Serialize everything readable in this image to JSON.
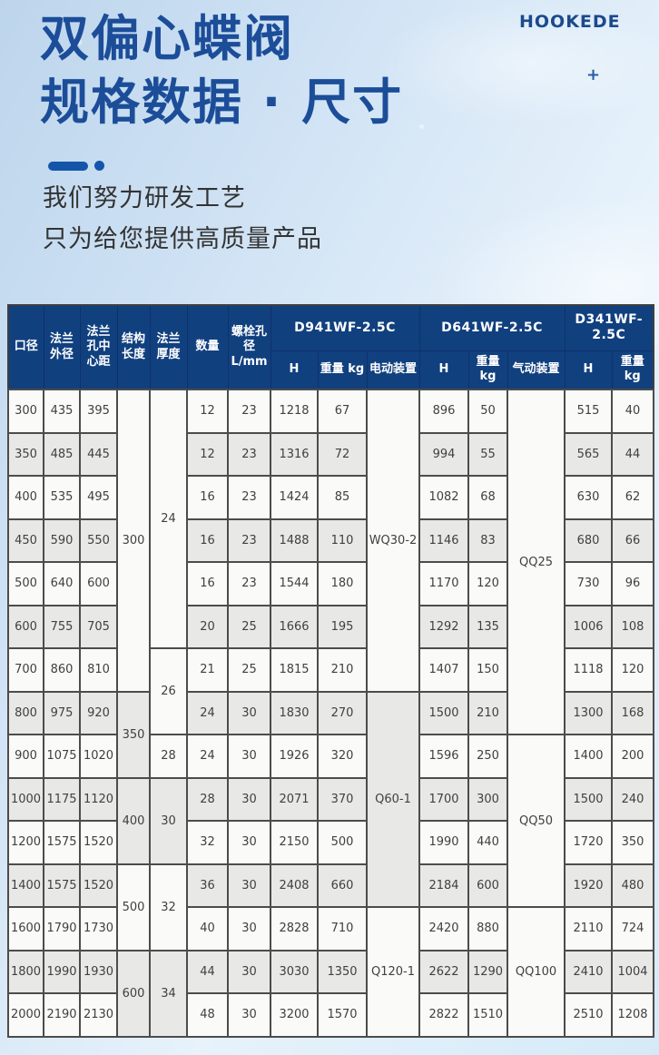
{
  "hero": {
    "brand": "HOOKEDE",
    "plus": "+",
    "title_line1": "双偏心蝶阀",
    "title_line2": "规格数据 · 尺寸",
    "subtitle_line1": "我们努力研发工艺",
    "subtitle_line2": "只为给您提供高质量产品"
  },
  "colors": {
    "header_bg": "#11407f",
    "title_blue": "#1c4d99",
    "accent_blue": "#1455aa",
    "row_light": "#fafaf9",
    "row_dark": "#e8e8e7",
    "body_border": "#4c4c4c"
  },
  "table": {
    "columns": [
      "口径",
      "法兰外径",
      "法兰孔中心距",
      "结构长度",
      "法兰厚度",
      "数量",
      "螺栓孔径 L/mm"
    ],
    "groups": [
      {
        "label": "D941WF-2.5C",
        "sub": [
          "H",
          "重量 kg",
          "电动装置"
        ]
      },
      {
        "label": "D641WF-2.5C",
        "sub": [
          "H",
          "重量 kg",
          "气动装置"
        ]
      },
      {
        "label": "D341WF-2.5C",
        "sub": [
          "H",
          "重量 kg"
        ]
      }
    ],
    "rows": [
      {
        "shade": "light",
        "cells": [
          {
            "v": "300"
          },
          {
            "v": "435"
          },
          {
            "v": "395"
          },
          {
            "v": "300",
            "rs": 7,
            "bg": "light"
          },
          {
            "v": "24",
            "rs": 6,
            "bg": "light"
          },
          {
            "v": "12"
          },
          {
            "v": "23"
          },
          {
            "v": "1218"
          },
          {
            "v": "67"
          },
          {
            "v": "WQ30-2",
            "rs": 7,
            "bg": "light"
          },
          {
            "v": "896"
          },
          {
            "v": "50"
          },
          {
            "v": "QQ25",
            "rs": 8,
            "bg": "light"
          },
          {
            "v": "515"
          },
          {
            "v": "40"
          }
        ]
      },
      {
        "shade": "dark",
        "cells": [
          {
            "v": "350"
          },
          {
            "v": "485"
          },
          {
            "v": "445"
          },
          {
            "v": "12"
          },
          {
            "v": "23"
          },
          {
            "v": "1316"
          },
          {
            "v": "72"
          },
          {
            "v": "994"
          },
          {
            "v": "55"
          },
          {
            "v": "565"
          },
          {
            "v": "44"
          }
        ]
      },
      {
        "shade": "light",
        "cells": [
          {
            "v": "400"
          },
          {
            "v": "535"
          },
          {
            "v": "495"
          },
          {
            "v": "16"
          },
          {
            "v": "23"
          },
          {
            "v": "1424"
          },
          {
            "v": "85"
          },
          {
            "v": "1082"
          },
          {
            "v": "68"
          },
          {
            "v": "630"
          },
          {
            "v": "62"
          }
        ]
      },
      {
        "shade": "dark",
        "cells": [
          {
            "v": "450"
          },
          {
            "v": "590"
          },
          {
            "v": "550"
          },
          {
            "v": "16"
          },
          {
            "v": "23"
          },
          {
            "v": "1488"
          },
          {
            "v": "110"
          },
          {
            "v": "1146"
          },
          {
            "v": "83"
          },
          {
            "v": "680"
          },
          {
            "v": "66"
          }
        ]
      },
      {
        "shade": "light",
        "cells": [
          {
            "v": "500"
          },
          {
            "v": "640"
          },
          {
            "v": "600"
          },
          {
            "v": "16"
          },
          {
            "v": "23"
          },
          {
            "v": "1544"
          },
          {
            "v": "180"
          },
          {
            "v": "1170"
          },
          {
            "v": "120"
          },
          {
            "v": "730"
          },
          {
            "v": "96"
          }
        ]
      },
      {
        "shade": "dark",
        "cells": [
          {
            "v": "600"
          },
          {
            "v": "755"
          },
          {
            "v": "705"
          },
          {
            "v": "20"
          },
          {
            "v": "25"
          },
          {
            "v": "1666"
          },
          {
            "v": "195"
          },
          {
            "v": "1292"
          },
          {
            "v": "135"
          },
          {
            "v": "1006"
          },
          {
            "v": "108"
          }
        ]
      },
      {
        "shade": "light",
        "cells": [
          {
            "v": "700"
          },
          {
            "v": "860"
          },
          {
            "v": "810"
          },
          {
            "v": "26",
            "rs": 2,
            "bg": "light"
          },
          {
            "v": "21"
          },
          {
            "v": "25"
          },
          {
            "v": "1815"
          },
          {
            "v": "210"
          },
          {
            "v": "1407"
          },
          {
            "v": "150"
          },
          {
            "v": "1118"
          },
          {
            "v": "120"
          }
        ]
      },
      {
        "shade": "dark",
        "cells": [
          {
            "v": "800"
          },
          {
            "v": "975"
          },
          {
            "v": "920"
          },
          {
            "v": "350",
            "rs": 2,
            "bg": "dark"
          },
          {
            "v": "24"
          },
          {
            "v": "30"
          },
          {
            "v": "1830"
          },
          {
            "v": "270"
          },
          {
            "v": "Q60-1",
            "rs": 5,
            "bg": "dark"
          },
          {
            "v": "1500"
          },
          {
            "v": "210"
          },
          {
            "v": "1300"
          },
          {
            "v": "168"
          }
        ]
      },
      {
        "shade": "light",
        "cells": [
          {
            "v": "900"
          },
          {
            "v": "1075"
          },
          {
            "v": "1020"
          },
          {
            "v": "28"
          },
          {
            "v": "24"
          },
          {
            "v": "30"
          },
          {
            "v": "1926"
          },
          {
            "v": "320"
          },
          {
            "v": "1596"
          },
          {
            "v": "250"
          },
          {
            "v": "QQ50",
            "rs": 4,
            "bg": "light"
          },
          {
            "v": "1400"
          },
          {
            "v": "200"
          }
        ]
      },
      {
        "shade": "dark",
        "cells": [
          {
            "v": "1000"
          },
          {
            "v": "1175"
          },
          {
            "v": "1120"
          },
          {
            "v": "400",
            "rs": 2,
            "bg": "dark"
          },
          {
            "v": "30",
            "rs": 2,
            "bg": "dark"
          },
          {
            "v": "28"
          },
          {
            "v": "30"
          },
          {
            "v": "2071"
          },
          {
            "v": "370"
          },
          {
            "v": "1700"
          },
          {
            "v": "300"
          },
          {
            "v": "1500"
          },
          {
            "v": "240"
          }
        ]
      },
      {
        "shade": "light",
        "cells": [
          {
            "v": "1200"
          },
          {
            "v": "1575"
          },
          {
            "v": "1520"
          },
          {
            "v": "32"
          },
          {
            "v": "30"
          },
          {
            "v": "2150"
          },
          {
            "v": "500"
          },
          {
            "v": "1990"
          },
          {
            "v": "440"
          },
          {
            "v": "1720"
          },
          {
            "v": "350"
          }
        ]
      },
      {
        "shade": "dark",
        "cells": [
          {
            "v": "1400"
          },
          {
            "v": "1575"
          },
          {
            "v": "1520"
          },
          {
            "v": "500",
            "rs": 2,
            "bg": "light"
          },
          {
            "v": "32",
            "rs": 2,
            "bg": "light"
          },
          {
            "v": "36"
          },
          {
            "v": "30"
          },
          {
            "v": "2408"
          },
          {
            "v": "660"
          },
          {
            "v": "2184"
          },
          {
            "v": "600"
          },
          {
            "v": "1920"
          },
          {
            "v": "480"
          }
        ]
      },
      {
        "shade": "light",
        "cells": [
          {
            "v": "1600"
          },
          {
            "v": "1790"
          },
          {
            "v": "1730"
          },
          {
            "v": "40"
          },
          {
            "v": "30"
          },
          {
            "v": "2828"
          },
          {
            "v": "710"
          },
          {
            "v": "Q120-1",
            "rs": 3,
            "bg": "light"
          },
          {
            "v": "2420"
          },
          {
            "v": "880"
          },
          {
            "v": "QQ100",
            "rs": 3,
            "bg": "light"
          },
          {
            "v": "2110"
          },
          {
            "v": "724"
          }
        ]
      },
      {
        "shade": "dark",
        "cells": [
          {
            "v": "1800"
          },
          {
            "v": "1990"
          },
          {
            "v": "1930"
          },
          {
            "v": "600",
            "rs": 2,
            "bg": "dark"
          },
          {
            "v": "34",
            "rs": 2,
            "bg": "dark"
          },
          {
            "v": "44"
          },
          {
            "v": "30"
          },
          {
            "v": "3030"
          },
          {
            "v": "1350"
          },
          {
            "v": "2622"
          },
          {
            "v": "1290"
          },
          {
            "v": "2410"
          },
          {
            "v": "1004"
          }
        ]
      },
      {
        "shade": "light",
        "cells": [
          {
            "v": "2000"
          },
          {
            "v": "2190"
          },
          {
            "v": "2130"
          },
          {
            "v": "48"
          },
          {
            "v": "30"
          },
          {
            "v": "3200"
          },
          {
            "v": "1570"
          },
          {
            "v": "2822"
          },
          {
            "v": "1510"
          },
          {
            "v": "2510"
          },
          {
            "v": "1208"
          }
        ]
      }
    ]
  }
}
